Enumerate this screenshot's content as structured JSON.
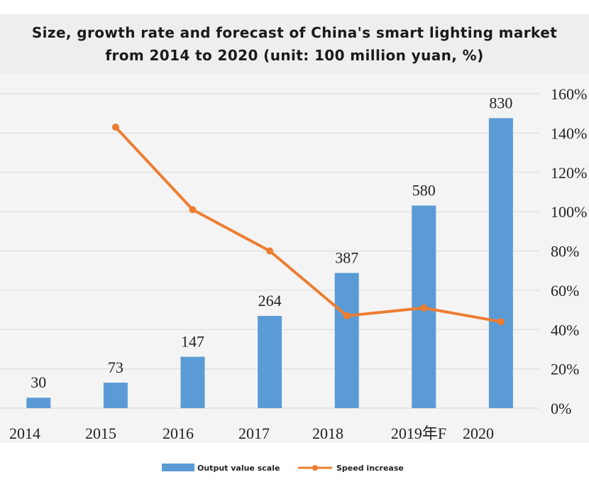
{
  "title": {
    "line1": "Size, growth rate and forecast of China's smart lighting market",
    "line2": "from 2014 to 2020 (unit: 100 million yuan, %)"
  },
  "colors": {
    "bar": "#5b9bd5",
    "line": "#ed7d31",
    "grid": "#d9d9d9",
    "text": "#222222"
  },
  "chart_data": {
    "type": "bar",
    "title": "Size, growth rate and forecast of China's smart lighting market from 2014 to 2020 (unit: 100 million yuan, %)",
    "categories": [
      "2014",
      "2015",
      "2016",
      "2017",
      "2018",
      "2019年F",
      "2020"
    ],
    "series": [
      {
        "name": "Output value scale",
        "type": "bar",
        "axis": "left",
        "values": [
          30,
          73,
          147,
          264,
          387,
          580,
          830
        ],
        "labels": [
          "30",
          "73",
          "147",
          "264",
          "387",
          "580",
          "830"
        ]
      },
      {
        "name": "Speed increase",
        "type": "line",
        "axis": "right",
        "values": [
          null,
          143,
          101,
          80,
          47,
          51,
          44
        ]
      }
    ],
    "y_left": {
      "min": 0,
      "max": 900,
      "ticks_shown": false
    },
    "y_right": {
      "min": 0,
      "max": 160,
      "step": 20,
      "tick_labels": [
        "0%",
        "20%",
        "40%",
        "60%",
        "80%",
        "100%",
        "120%",
        "140%",
        "160%"
      ]
    },
    "grid": true,
    "legend": {
      "position": "bottom",
      "items": [
        "Output value scale",
        "Speed increase"
      ]
    }
  }
}
